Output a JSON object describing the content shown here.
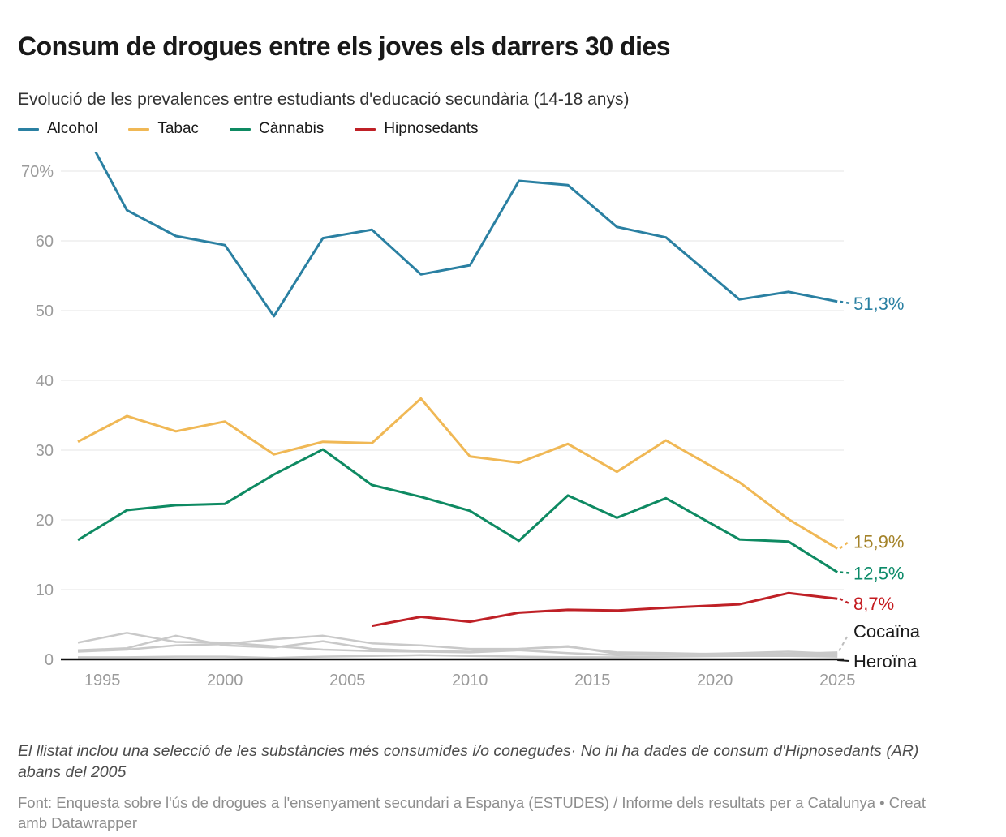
{
  "header": {
    "title": "Consum de drogues entre els joves els darrers 30 dies",
    "subtitle": "Evolució de les prevalences entre estudiants d'educació secundària (14-18 anys)"
  },
  "legend": [
    {
      "label": "Alcohol",
      "color": "#2a80a2"
    },
    {
      "label": "Tabac",
      "color": "#f0b855"
    },
    {
      "label": "Cànnabis",
      "color": "#0e8a62"
    },
    {
      "label": "Hipnosedants",
      "color": "#bf2026"
    }
  ],
  "chart_data": {
    "type": "line",
    "unit": "%",
    "years": [
      1994,
      1996,
      1998,
      2000,
      2002,
      2004,
      2006,
      2008,
      2010,
      2012,
      2014,
      2016,
      2018,
      2021,
      2023,
      2025
    ],
    "x_ticks": [
      1995,
      2000,
      2005,
      2010,
      2015,
      2020,
      2025
    ],
    "y_ticks": [
      0,
      10,
      20,
      30,
      40,
      50,
      60,
      70
    ],
    "y_tick_top_label": "70%",
    "ylim": [
      0,
      72.8
    ],
    "grid": true,
    "series": [
      {
        "name": "Alcohol",
        "color": "#2a80a2",
        "label_color": "#2a80a2",
        "end_label": "51,3%",
        "values": [
          77.5,
          64.4,
          60.7,
          59.4,
          49.2,
          60.4,
          61.6,
          55.2,
          56.5,
          68.6,
          68.0,
          62.0,
          60.5,
          51.6,
          52.7,
          51.3
        ]
      },
      {
        "name": "Tabac",
        "color": "#f0b855",
        "label_color": "#a4832a",
        "end_label": "15,9%",
        "values": [
          31.2,
          34.9,
          32.7,
          34.1,
          29.4,
          31.2,
          31.0,
          37.4,
          29.1,
          28.2,
          30.9,
          26.9,
          31.4,
          25.4,
          20.1,
          15.9
        ]
      },
      {
        "name": "Cànnabis",
        "color": "#0e8a62",
        "label_color": "#0b8a68",
        "end_label": "12,5%",
        "values": [
          17.1,
          21.4,
          22.1,
          22.3,
          26.5,
          30.1,
          25.0,
          23.3,
          21.3,
          17.0,
          23.5,
          20.3,
          23.1,
          17.2,
          16.9,
          12.5
        ]
      },
      {
        "name": "Hipnosedants",
        "color": "#bf2026",
        "label_color": "#c41a1f",
        "end_label": "8,7%",
        "values": [
          null,
          null,
          null,
          null,
          null,
          null,
          4.8,
          6.1,
          5.4,
          6.7,
          7.1,
          7.0,
          7.4,
          7.9,
          9.5,
          8.7
        ]
      },
      {
        "name": "Cocaïna",
        "color": "#c9c9c9",
        "label_color": "#1a1a1a",
        "end_label": "Cocaïna",
        "values": [
          1.1,
          1.4,
          2.0,
          2.2,
          2.9,
          3.4,
          2.3,
          2.0,
          1.5,
          1.5,
          1.8,
          1.0,
          0.9,
          0.7,
          0.8,
          1.0
        ]
      },
      {
        "name": "",
        "color": "#c9c9c9",
        "end_label": "",
        "values": [
          2.4,
          3.8,
          2.5,
          2.4,
          1.9,
          1.4,
          1.2,
          1.1,
          1.0,
          1.3,
          0.9,
          0.6,
          0.7,
          0.6,
          0.8,
          0.6
        ]
      },
      {
        "name": "",
        "color": "#c9c9c9",
        "end_label": "",
        "values": [
          1.3,
          1.6,
          3.4,
          2.0,
          1.7,
          2.6,
          1.5,
          1.2,
          1.1,
          1.5,
          1.9,
          0.8,
          0.7,
          0.9,
          1.1,
          0.8
        ]
      },
      {
        "name": "Heroïna",
        "color": "#c9c9c9",
        "label_color": "#1a1a1a",
        "end_label": "Heroïna",
        "values": [
          0.3,
          0.3,
          0.4,
          0.4,
          0.2,
          0.4,
          0.5,
          0.6,
          0.5,
          0.4,
          0.3,
          0.3,
          0.4,
          0.5,
          0.5,
          0.4
        ]
      }
    ]
  },
  "footer": {
    "note": "El llistat inclou una selecció de les substàncies més consumides i/o conegudes· No hi ha dades de consum d'Hipnosedants (AR) abans del 2005",
    "source_prefix": "Font: Enquesta sobre l'ús de drogues a l'ensenyament secundari a Espanya (ESTUDES) / Informe dels resultats per a Catalunya • ",
    "attribution": "Creat amb Datawrapper"
  }
}
